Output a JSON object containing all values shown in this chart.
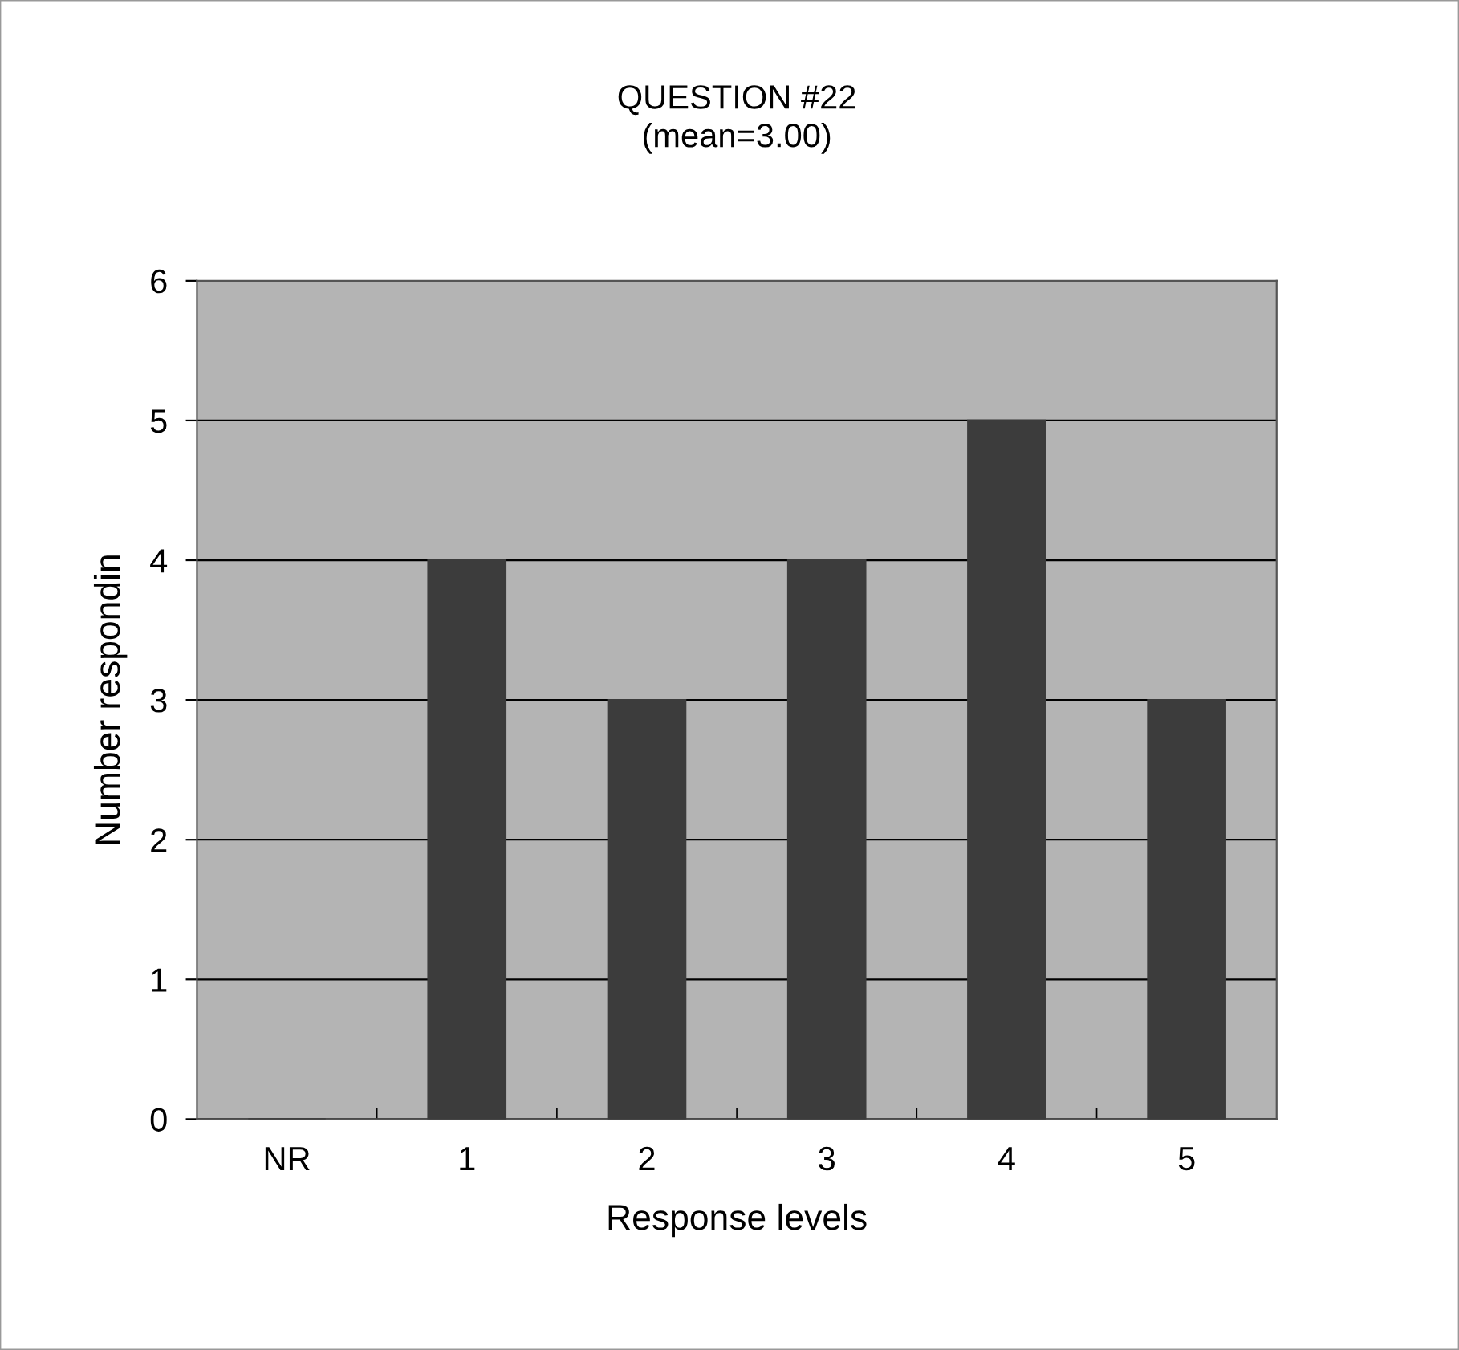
{
  "chart_data": {
    "type": "bar",
    "title": "QUESTION #22\n(mean=3.00)",
    "xlabel": "Response levels",
    "ylabel": "Number respondin",
    "categories": [
      "NR",
      "1",
      "2",
      "3",
      "4",
      "5"
    ],
    "values": [
      0,
      4,
      3,
      4,
      5,
      3
    ],
    "color": "#3c3c3c",
    "ylim": [
      0,
      6
    ],
    "yticks": [
      0,
      1,
      2,
      3,
      4,
      5,
      6
    ],
    "grid": "y",
    "legend": false
  }
}
